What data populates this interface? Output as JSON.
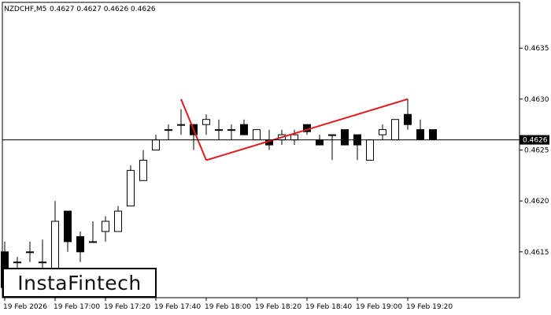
{
  "header": {
    "symbol": "NZDCHF,M5",
    "ohlc": "0.4627 0.4627 0.4626 0.4626"
  },
  "logo": {
    "text": "InstaFintech"
  },
  "colors": {
    "background": "#ffffff",
    "axis": "#000000",
    "candle_bull": "#ffffff",
    "candle_bear": "#000000",
    "pattern_line": "#e31a1c",
    "price_line": "#000000",
    "price_label_bg": "#000000",
    "price_label_text": "#ffffff"
  },
  "chart_data": {
    "type": "candlestick",
    "instrument": "NZDCHF",
    "timeframe": "M5",
    "ylim": [
      0.46105,
      0.46395
    ],
    "y_ticks": [
      "0.4615",
      "0.4620",
      "0.4625",
      "0.4630",
      "0.4635"
    ],
    "current_price": "0.4626",
    "x_tick_labels": [
      "19 Feb 2026",
      "19 Feb 17:00",
      "19 Feb 17:20",
      "19 Feb 17:40",
      "19 Feb 18:00",
      "19 Feb 18:20",
      "19 Feb 18:40",
      "19 Feb 19:00",
      "19 Feb 19:20"
    ],
    "x_tick_index": [
      0,
      4,
      8,
      12,
      16,
      20,
      24,
      28,
      32
    ],
    "candles": [
      {
        "o": 0.4615,
        "h": 0.4616,
        "l": 0.46105,
        "c": 0.46115
      },
      {
        "o": 0.4614,
        "h": 0.46145,
        "l": 0.46125,
        "c": 0.4614
      },
      {
        "o": 0.4615,
        "h": 0.4616,
        "l": 0.4614,
        "c": 0.4615
      },
      {
        "o": 0.4614,
        "h": 0.46162,
        "l": 0.4612,
        "c": 0.4614
      },
      {
        "o": 0.4613,
        "h": 0.462,
        "l": 0.4613,
        "c": 0.4618
      },
      {
        "o": 0.4619,
        "h": 0.4619,
        "l": 0.4615,
        "c": 0.4616
      },
      {
        "o": 0.46165,
        "h": 0.4617,
        "l": 0.4614,
        "c": 0.4615
      },
      {
        "o": 0.4616,
        "h": 0.4618,
        "l": 0.4616,
        "c": 0.4616
      },
      {
        "o": 0.4617,
        "h": 0.46185,
        "l": 0.4616,
        "c": 0.4618
      },
      {
        "o": 0.4617,
        "h": 0.46195,
        "l": 0.4617,
        "c": 0.4619
      },
      {
        "o": 0.46195,
        "h": 0.46235,
        "l": 0.46195,
        "c": 0.4623
      },
      {
        "o": 0.4622,
        "h": 0.4625,
        "l": 0.4622,
        "c": 0.4624
      },
      {
        "o": 0.4625,
        "h": 0.46265,
        "l": 0.4625,
        "c": 0.4626
      },
      {
        "o": 0.4627,
        "h": 0.46275,
        "l": 0.4626,
        "c": 0.4627
      },
      {
        "o": 0.46275,
        "h": 0.4629,
        "l": 0.46265,
        "c": 0.46275
      },
      {
        "o": 0.46275,
        "h": 0.46275,
        "l": 0.4625,
        "c": 0.46265
      },
      {
        "o": 0.46275,
        "h": 0.46285,
        "l": 0.46265,
        "c": 0.4628
      },
      {
        "o": 0.4627,
        "h": 0.4628,
        "l": 0.4626,
        "c": 0.4627
      },
      {
        "o": 0.4627,
        "h": 0.46275,
        "l": 0.4626,
        "c": 0.4627
      },
      {
        "o": 0.46275,
        "h": 0.4628,
        "l": 0.46265,
        "c": 0.46265
      },
      {
        "o": 0.4626,
        "h": 0.4627,
        "l": 0.4626,
        "c": 0.4627
      },
      {
        "o": 0.4626,
        "h": 0.4627,
        "l": 0.4625,
        "c": 0.46255
      },
      {
        "o": 0.4626,
        "h": 0.4627,
        "l": 0.46255,
        "c": 0.46265
      },
      {
        "o": 0.4626,
        "h": 0.4627,
        "l": 0.46255,
        "c": 0.46265
      },
      {
        "o": 0.46275,
        "h": 0.46275,
        "l": 0.46265,
        "c": 0.46268
      },
      {
        "o": 0.4626,
        "h": 0.46265,
        "l": 0.46255,
        "c": 0.46255
      },
      {
        "o": 0.46265,
        "h": 0.46265,
        "l": 0.4624,
        "c": 0.46265
      },
      {
        "o": 0.4627,
        "h": 0.4627,
        "l": 0.46255,
        "c": 0.46255
      },
      {
        "o": 0.46265,
        "h": 0.46265,
        "l": 0.4624,
        "c": 0.46255
      },
      {
        "o": 0.4624,
        "h": 0.4626,
        "l": 0.4624,
        "c": 0.4626
      },
      {
        "o": 0.46265,
        "h": 0.46275,
        "l": 0.4626,
        "c": 0.4627
      },
      {
        "o": 0.4626,
        "h": 0.4628,
        "l": 0.4626,
        "c": 0.4628
      },
      {
        "o": 0.46285,
        "h": 0.463,
        "l": 0.4627,
        "c": 0.46275
      },
      {
        "o": 0.4627,
        "h": 0.4628,
        "l": 0.4626,
        "c": 0.4626
      },
      {
        "o": 0.4627,
        "h": 0.4627,
        "l": 0.4626,
        "c": 0.4626
      }
    ],
    "pattern_lines": [
      {
        "from": {
          "index": 14,
          "price": 0.463
        },
        "to": {
          "index": 16,
          "price": 0.4624
        }
      },
      {
        "from": {
          "index": 16,
          "price": 0.4624
        },
        "to": {
          "index": 32,
          "price": 0.463
        }
      }
    ]
  }
}
